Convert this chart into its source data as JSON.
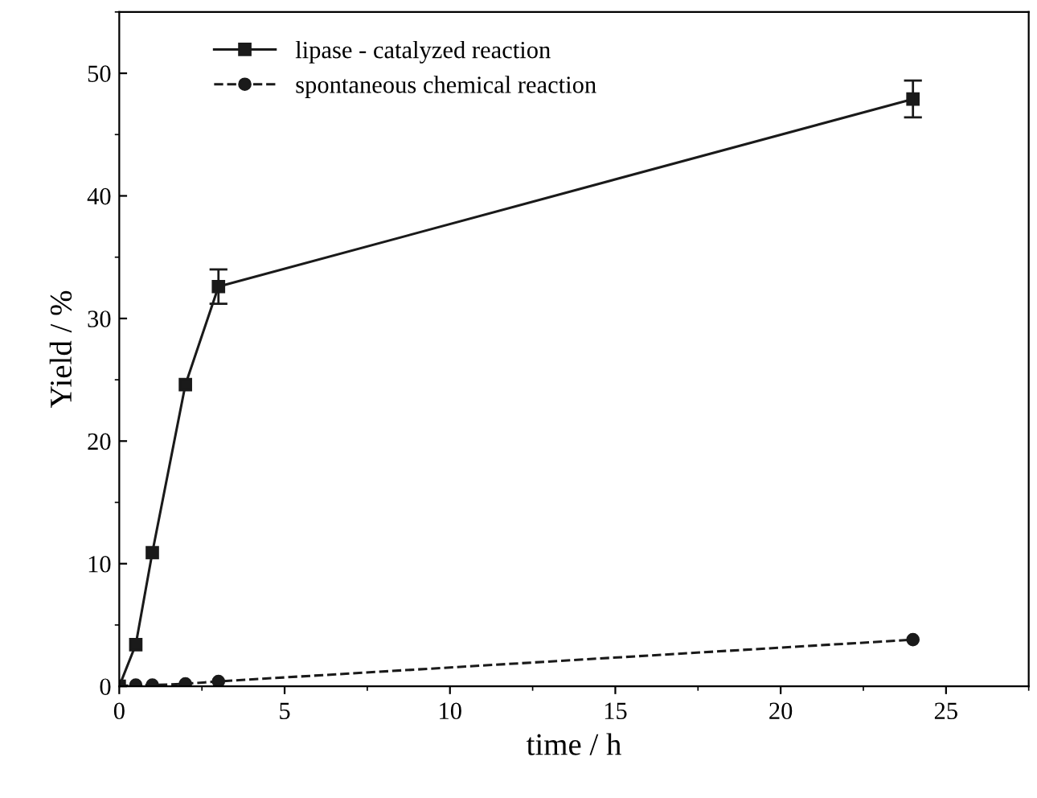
{
  "chart_data": {
    "type": "line",
    "xlabel": "time / h",
    "ylabel": "Yield / %",
    "xlim": [
      0,
      27.5
    ],
    "xticks": [
      0,
      5,
      10,
      15,
      20,
      25
    ],
    "ylim": [
      0,
      55
    ],
    "yticks": [
      0,
      10,
      20,
      30,
      40,
      50
    ],
    "x": [
      0,
      0.5,
      1,
      2,
      3,
      24
    ],
    "series": [
      {
        "name": "lipase - catalyzed reaction",
        "color": "#1a1a1a",
        "values": [
          0,
          3.4,
          10.9,
          24.6,
          32.6,
          47.9
        ],
        "errors": [
          null,
          null,
          null,
          null,
          1.4,
          1.5
        ],
        "marker": "square",
        "line_style": "solid"
      },
      {
        "name": "spontaneous chemical reaction",
        "color": "#1a1a1a",
        "values": [
          0,
          0.1,
          0.1,
          0.2,
          0.4,
          3.8
        ],
        "marker": "circle",
        "line_style": "dashed"
      }
    ],
    "legend": "top left",
    "grid": false
  }
}
